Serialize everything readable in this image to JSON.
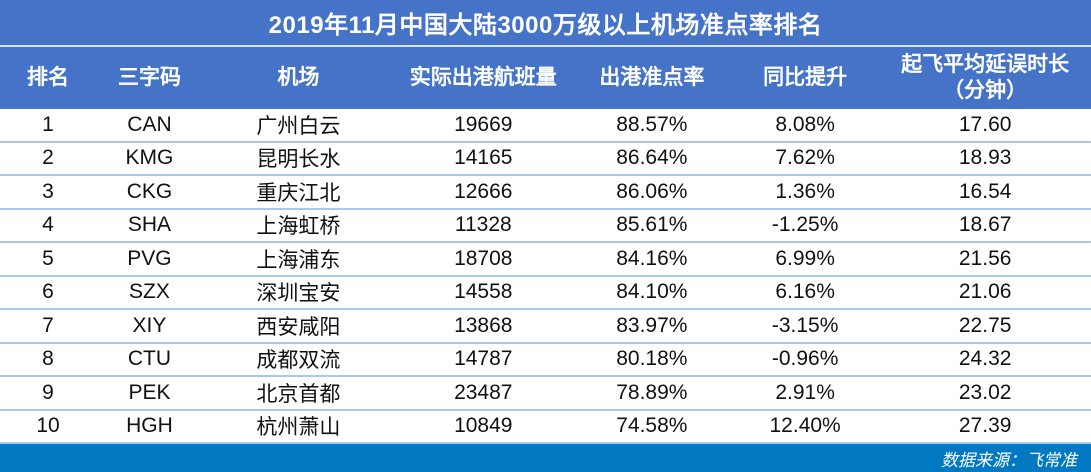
{
  "title": "2019年11月中国大陆3000万级以上机场准点率排名",
  "footer": {
    "source": "数据来源：飞常准"
  },
  "colors": {
    "band_blue": "#4573C7",
    "footer_blue": "#0079C2",
    "row_divider": "#ABC8E8",
    "title_divider": "#D9E3F3",
    "header_text": "#FFFFFF",
    "data_text": "#111111"
  },
  "chart_data": {
    "type": "table",
    "title": "2019年11月中国大陆3000万级以上机场准点率排名",
    "columns": [
      "排名",
      "三字码",
      "机场",
      "实际出港航班量",
      "出港准点率",
      "同比提升",
      "起飞平均延误时长\n（分钟）"
    ],
    "column_keys": [
      "rank",
      "code",
      "airport",
      "flights",
      "ontime-rate",
      "yoy-change",
      "avg-delay"
    ],
    "rows": [
      [
        "1",
        "CAN",
        "广州白云",
        "19669",
        "88.57%",
        "8.08%",
        "17.60"
      ],
      [
        "2",
        "KMG",
        "昆明长水",
        "14165",
        "86.64%",
        "7.62%",
        "18.93"
      ],
      [
        "3",
        "CKG",
        "重庆江北",
        "12666",
        "86.06%",
        "1.36%",
        "16.54"
      ],
      [
        "4",
        "SHA",
        "上海虹桥",
        "11328",
        "85.61%",
        "-1.25%",
        "18.67"
      ],
      [
        "5",
        "PVG",
        "上海浦东",
        "18708",
        "84.16%",
        "6.99%",
        "21.56"
      ],
      [
        "6",
        "SZX",
        "深圳宝安",
        "14558",
        "84.10%",
        "6.16%",
        "21.06"
      ],
      [
        "7",
        "XIY",
        "西安咸阳",
        "13868",
        "83.97%",
        "-3.15%",
        "22.75"
      ],
      [
        "8",
        "CTU",
        "成都双流",
        "14787",
        "80.18%",
        "-0.96%",
        "24.32"
      ],
      [
        "9",
        "PEK",
        "北京首都",
        "23487",
        "78.89%",
        "2.91%",
        "23.02"
      ],
      [
        "10",
        "HGH",
        "杭州萧山",
        "10849",
        "74.58%",
        "12.40%",
        "27.39"
      ]
    ],
    "source": "数据来源：飞常准"
  }
}
